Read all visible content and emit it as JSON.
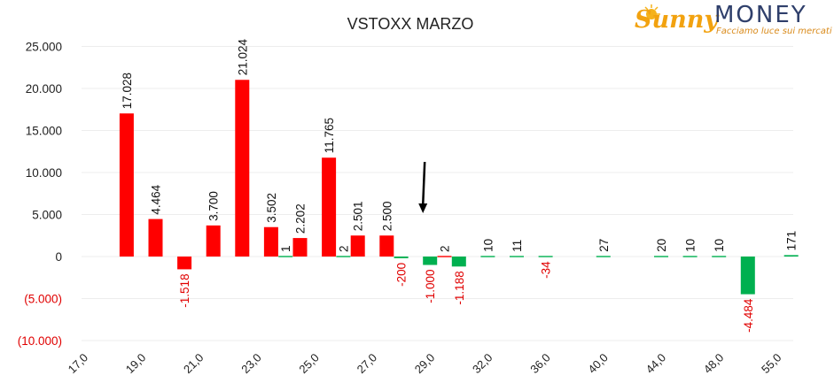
{
  "chart_data": {
    "type": "bar",
    "title": "VSTOXX MARZO",
    "xlabel": "",
    "ylabel": "",
    "ylim": [
      -10000,
      25000
    ],
    "yticks": [
      {
        "value": 25000,
        "label": "25.000"
      },
      {
        "value": 20000,
        "label": "20.000"
      },
      {
        "value": 15000,
        "label": "15.000"
      },
      {
        "value": 10000,
        "label": "10.000"
      },
      {
        "value": 5000,
        "label": "5.000"
      },
      {
        "value": 0,
        "label": "0"
      },
      {
        "value": -5000,
        "label": "(5.000)"
      },
      {
        "value": -10000,
        "label": "(10.000)"
      }
    ],
    "x_tick_labels": [
      "17,0",
      "19,0",
      "21,0",
      "23,0",
      "25,0",
      "27,0",
      "29,0",
      "32,0",
      "36,0",
      "40,0",
      "44,0",
      "48,0",
      "55,0"
    ],
    "slots": 25,
    "bars": [
      {
        "slot": 1,
        "value": 17028,
        "label": "17.028",
        "color": "red"
      },
      {
        "slot": 2,
        "value": 4464,
        "label": "4.464",
        "color": "red"
      },
      {
        "slot": 3,
        "value": -1518,
        "label": "-1.518",
        "color": "red"
      },
      {
        "slot": 4,
        "value": 3700,
        "label": "3.700",
        "color": "red"
      },
      {
        "slot": 5,
        "value": 21024,
        "label": "21.024",
        "color": "red"
      },
      {
        "slot": 6,
        "value": 3502,
        "label": "3.502",
        "color": "red"
      },
      {
        "slot": 6.5,
        "value": 1,
        "label": "1",
        "color": "green"
      },
      {
        "slot": 7,
        "value": 2202,
        "label": "2.202",
        "color": "red"
      },
      {
        "slot": 8,
        "value": 11765,
        "label": "11.765",
        "color": "red"
      },
      {
        "slot": 8.5,
        "value": 2,
        "label": "2",
        "color": "green"
      },
      {
        "slot": 9,
        "value": 2501,
        "label": "2.501",
        "color": "red"
      },
      {
        "slot": 10,
        "value": 2500,
        "label": "2.500",
        "color": "red"
      },
      {
        "slot": 10.5,
        "value": -200,
        "label": "-200",
        "color": "green"
      },
      {
        "slot": 11.5,
        "value": -1000,
        "label": "-1.000",
        "color": "green"
      },
      {
        "slot": 12,
        "value": 2,
        "label": "2",
        "color": "red"
      },
      {
        "slot": 12.5,
        "value": -1188,
        "label": "-1.188",
        "color": "green"
      },
      {
        "slot": 13.5,
        "value": 10,
        "label": "10",
        "color": "green"
      },
      {
        "slot": 14.5,
        "value": 11,
        "label": "11",
        "color": "green"
      },
      {
        "slot": 15.5,
        "value": -34,
        "label": "-34",
        "color": "green"
      },
      {
        "slot": 17.5,
        "value": 27,
        "label": "27",
        "color": "green"
      },
      {
        "slot": 19.5,
        "value": 20,
        "label": "20",
        "color": "green"
      },
      {
        "slot": 20.5,
        "value": 10,
        "label": "10",
        "color": "green"
      },
      {
        "slot": 21.5,
        "value": 10,
        "label": "10",
        "color": "green"
      },
      {
        "slot": 22.5,
        "value": -4484,
        "label": "-4.484",
        "color": "green"
      },
      {
        "slot": 24,
        "value": 171,
        "label": "171",
        "color": "green"
      }
    ],
    "annotations": [
      {
        "type": "arrow",
        "direction": "down",
        "slot": 11.5
      }
    ],
    "colors": {
      "red": "#ff0000",
      "green": "#00b050",
      "negative_text": "#e00000",
      "positive_text": "#111111"
    },
    "grid": true,
    "legend": "none"
  },
  "logo": {
    "sunny": "Sunny",
    "money": "MONEY",
    "tagline": "Facciamo luce sui mercati"
  }
}
